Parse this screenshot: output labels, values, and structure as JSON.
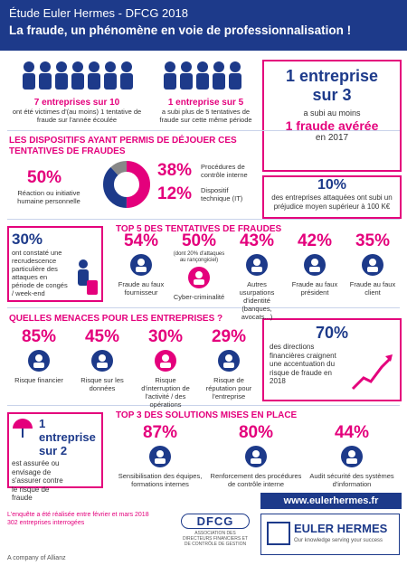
{
  "header": {
    "title": "Étude Euler Hermes - DFCG 2018",
    "subtitle": "La fraude, un phénomène en voie de professionnalisation !"
  },
  "stats": [
    {
      "value": "7 entreprises sur 10",
      "text": "ont été victimes d'(au moins) 1 tentative de fraude sur l'année écoulée"
    },
    {
      "value": "1 entreprise sur 5",
      "text": "a subi plus de 5 tentatives de fraude sur cette même période"
    }
  ],
  "highlight": {
    "line1": "1 entreprise",
    "line2": "sur 3",
    "line3": "a subi au moins",
    "line4": "1 fraude avérée",
    "line5": "en 2017"
  },
  "dispositifs": {
    "heading": "LES DISPOSITIFS AYANT PERMIS DE DÉJOUER CES TENTATIVES DE FRAUDES",
    "items": [
      {
        "value": "50%",
        "label": "Réaction ou initiative humaine personnelle"
      },
      {
        "value": "38%",
        "label": "Procédures de contrôle interne"
      },
      {
        "value": "12%",
        "label": "Dispositif technique (IT)"
      }
    ]
  },
  "prejudice": {
    "value": "10%",
    "text": "des entreprises attaquées ont subi un préjudice moyen supérieur à 100 K€"
  },
  "conges": {
    "value": "30%",
    "text": "ont constaté une recrudescence particulière des attaques en période de congés / week-end"
  },
  "top5": {
    "heading": "TOP 5 DES TENTATIVES DE FRAUDES",
    "items": [
      {
        "value": "54%",
        "label": "Fraude au faux fournisseur"
      },
      {
        "value": "50%",
        "note": "(dont 20% d'attaques au rançongiciel)",
        "label": "Cyber-criminalité"
      },
      {
        "value": "43%",
        "label": "Autres usurpations d'identité (banques, avocats...)"
      },
      {
        "value": "42%",
        "label": "Fraude au faux président"
      },
      {
        "value": "35%",
        "label": "Fraude au faux client"
      }
    ]
  },
  "menaces": {
    "heading": "QUELLES MENACES POUR LES ENTREPRISES ?",
    "items": [
      {
        "value": "85%",
        "label": "Risque financier"
      },
      {
        "value": "45%",
        "label": "Risque sur les données"
      },
      {
        "value": "30%",
        "label": "Risque d'interruption de l'activité / des opérations"
      },
      {
        "value": "29%",
        "label": "Risque de réputation pour l'entreprise"
      }
    ]
  },
  "accentuation": {
    "value": "70%",
    "text": "des directions financières craignent une accentuation du risque de fraude en 2018"
  },
  "assurance": {
    "value": "1 entreprise sur 2",
    "text": "est assurée ou envisage de s'assurer contre le risque de fraude"
  },
  "top3": {
    "heading": "TOP 3 DES SOLUTIONS MISES EN PLACE",
    "items": [
      {
        "value": "87%",
        "label": "Sensibilisation des équipes, formations internes"
      },
      {
        "value": "80%",
        "label": "Renforcement des procédures de contrôle interne"
      },
      {
        "value": "44%",
        "label": "Audit sécurité des systèmes d'information"
      }
    ]
  },
  "footer": {
    "url": "www.eulerhermes.fr",
    "survey_line1": "L'enquête a été réalisée entre février et mars 2018",
    "survey_line2": "302 entreprises interrogées",
    "dfcg": "DFCG",
    "dfcg_caption": "ASSOCIATION DES DIRECTEURS FINANCIERS ET DE CONTRÔLE DE GESTION",
    "eh_name": "EULER HERMES",
    "eh_tagline": "Our knowledge serving your success",
    "allianz": "A company of Allianz"
  }
}
